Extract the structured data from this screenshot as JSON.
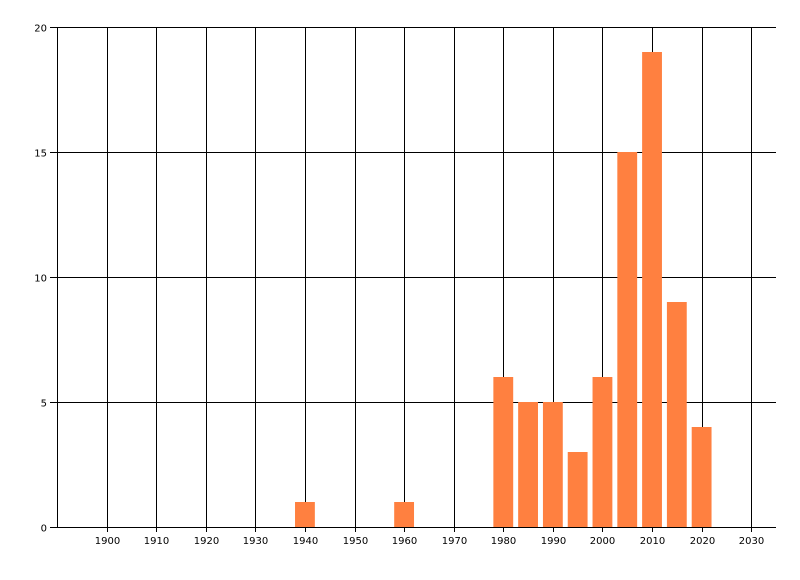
{
  "chart_data": {
    "type": "bar",
    "title": "",
    "xlabel": "",
    "ylabel": "",
    "x": [
      1940,
      1960,
      1980,
      1985,
      1990,
      1995,
      2000,
      2005,
      2010,
      2015,
      2020
    ],
    "values": [
      1,
      1,
      6,
      5,
      5,
      3,
      6,
      15,
      19,
      9,
      4
    ],
    "bar_width_years": 4,
    "xlim": [
      1890,
      2035
    ],
    "ylim": [
      0,
      20
    ],
    "xticks": [
      1900,
      1910,
      1920,
      1930,
      1940,
      1950,
      1960,
      1970,
      1980,
      1990,
      2000,
      2010,
      2020,
      2030
    ],
    "yticks": [
      0,
      5,
      10,
      15,
      20
    ],
    "grid": true,
    "colors": {
      "bar": "#FF8040",
      "grid": "#000000"
    }
  }
}
